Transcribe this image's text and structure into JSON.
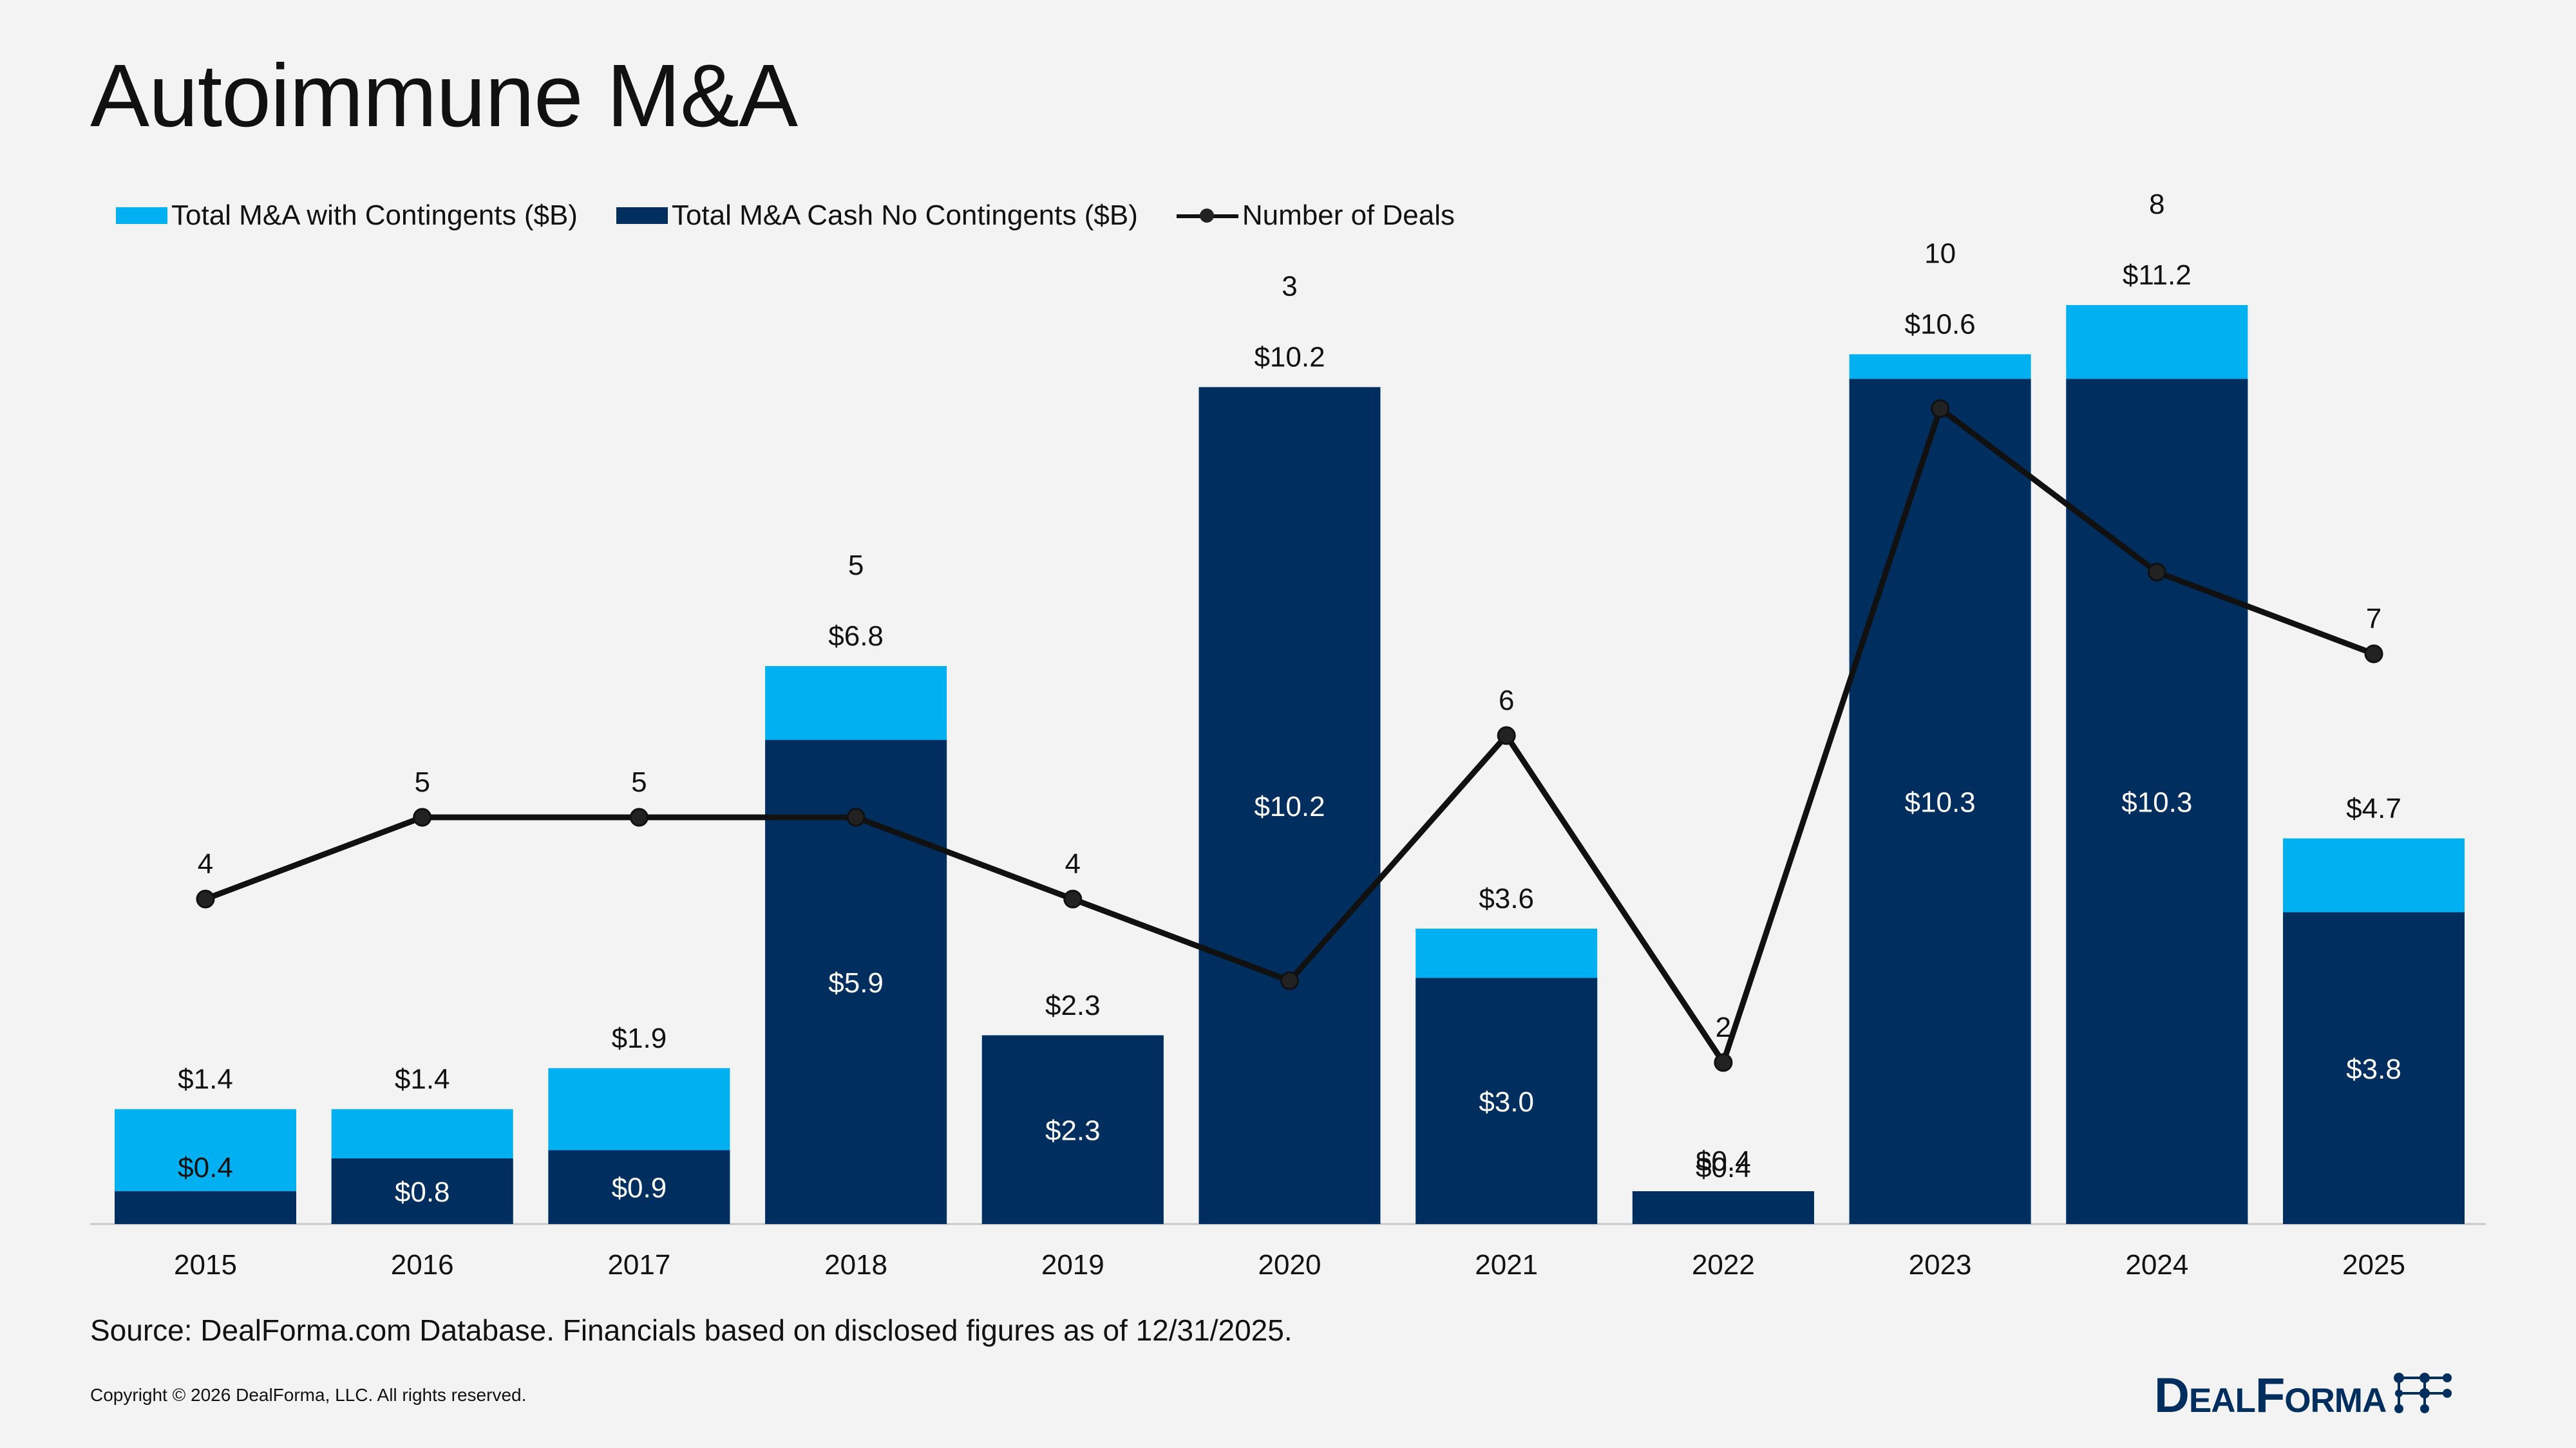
{
  "title": "Autoimmune M&A",
  "legend": {
    "with_contingents": "Total M&A with Contingents ($B)",
    "cash_no_contingents": "Total M&A Cash No Contingents ($B)",
    "number_of_deals": "Number of Deals"
  },
  "source": "Source: DealForma.com Database. Financials based on disclosed figures as of 12/31/2025.",
  "copyright": "Copyright © 2026 DealForma, LLC. All rights reserved.",
  "logo": {
    "text": "DealForma"
  },
  "colors": {
    "with_contingents": "#00b0f0",
    "cash_no_contingents": "#002f5f",
    "line": "#111111"
  },
  "chart_data": {
    "type": "bar",
    "categories": [
      "2015",
      "2016",
      "2017",
      "2018",
      "2019",
      "2020",
      "2021",
      "2022",
      "2023",
      "2024",
      "2025"
    ],
    "series": [
      {
        "name": "Total M&A with Contingents ($B)",
        "values": [
          1.4,
          1.4,
          1.9,
          6.8,
          2.3,
          10.2,
          3.6,
          0.4,
          10.6,
          11.2,
          4.7
        ],
        "labels": [
          "$1.4",
          "$1.4",
          "$1.9",
          "$6.8",
          "$2.3",
          "$10.2",
          "$3.6",
          "$0.4",
          "$10.6",
          "$11.2",
          "$4.7"
        ]
      },
      {
        "name": "Total M&A Cash No Contingents ($B)",
        "values": [
          0.4,
          0.8,
          0.9,
          5.9,
          2.3,
          10.2,
          3.0,
          0.4,
          10.3,
          10.3,
          3.8
        ],
        "labels": [
          "$0.4",
          "$0.8",
          "$0.9",
          "$5.9",
          "$2.3",
          "$10.2",
          "$3.0",
          "$0.4",
          "$10.3",
          "$10.3",
          "$3.8"
        ]
      },
      {
        "name": "Number of Deals",
        "type": "line",
        "values": [
          4,
          5,
          5,
          5,
          4,
          3,
          6,
          2,
          10,
          8,
          7
        ],
        "labels": [
          "4",
          "5",
          "5",
          "5",
          "4",
          "3",
          "6",
          "2",
          "10",
          "8",
          "7"
        ]
      }
    ],
    "stacked": false,
    "ylim_bars": [
      0,
      12
    ],
    "ylim_deals": [
      0,
      12
    ],
    "grid": false,
    "legend_position": "top-left"
  }
}
